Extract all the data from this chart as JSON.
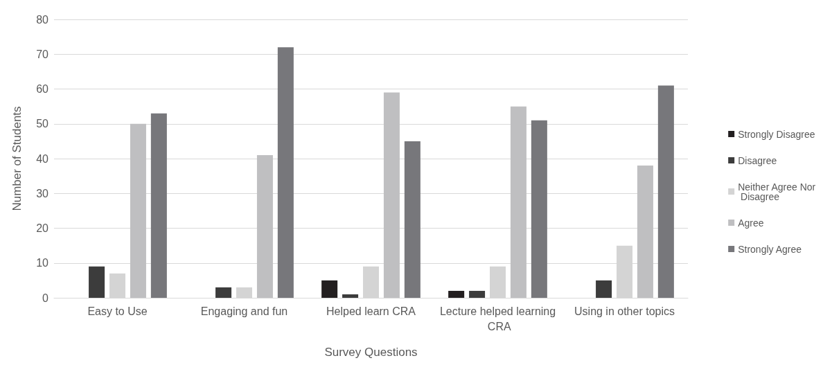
{
  "chart_data": {
    "type": "bar",
    "xlabel": "Survey Questions",
    "ylabel": "Number of Students",
    "categories": [
      "Easy to Use",
      "Engaging and fun",
      "Helped learn CRA",
      "Lecture helped learning CRA",
      "Using in other topics"
    ],
    "series": [
      {
        "name": "Strongly Disagree",
        "color": "#231f20",
        "values": [
          0,
          0,
          5,
          2,
          0
        ]
      },
      {
        "name": "Disagree",
        "color": "#3c3c3c",
        "values": [
          9,
          3,
          1,
          2,
          5
        ]
      },
      {
        "name": "Neither Agree Nor Disagree",
        "color": "#d4d4d4",
        "values": [
          7,
          3,
          9,
          9,
          15
        ]
      },
      {
        "name": "Agree",
        "color": "#bfbfc1",
        "values": [
          50,
          41,
          59,
          55,
          38
        ]
      },
      {
        "name": "Strongly Agree",
        "color": "#77777b",
        "values": [
          53,
          72,
          45,
          51,
          61
        ]
      }
    ],
    "ylim": [
      0,
      80
    ],
    "yticks": [
      0,
      10,
      20,
      30,
      40,
      50,
      60,
      70,
      80
    ],
    "grid": "y",
    "legend": "right"
  }
}
